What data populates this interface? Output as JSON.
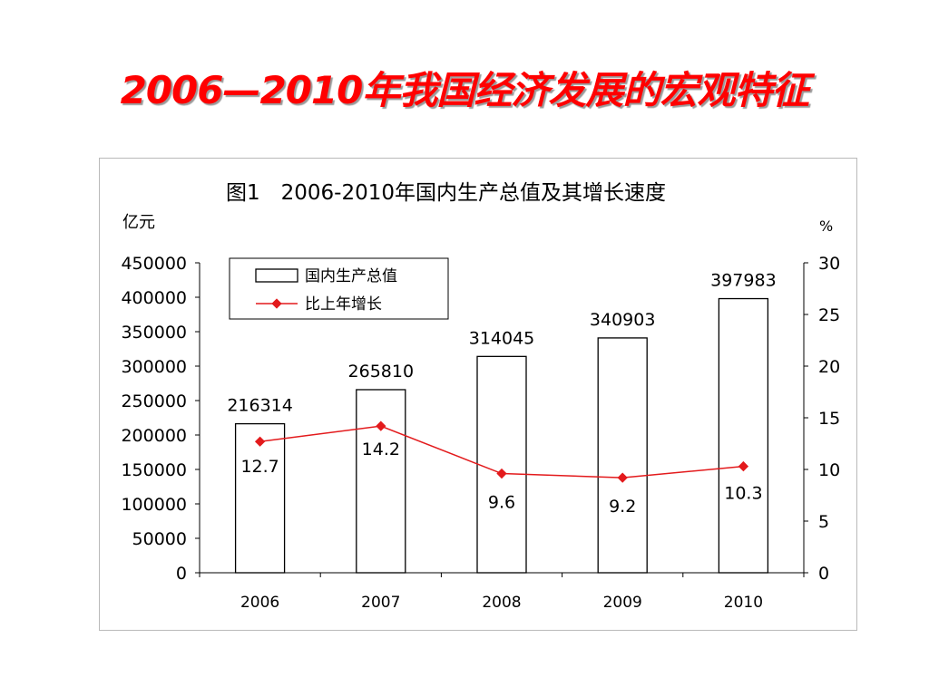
{
  "slide": {
    "title": "2006—2010年我国经济发展的宏观特征"
  },
  "colors": {
    "title": "#ff0000",
    "bar_fill": "#ffffff",
    "bar_stroke": "#000000",
    "line": "#e31a1c"
  },
  "chart_data": {
    "type": "bar",
    "title": "图1　2006-2010年国内生产总值及其增长速度",
    "left_unit": "亿元",
    "right_unit": "%",
    "categories": [
      "2006",
      "2007",
      "2008",
      "2009",
      "2010"
    ],
    "series": [
      {
        "name": "国内生产总值",
        "type": "bar",
        "axis": "left",
        "values": [
          216314,
          265810,
          314045,
          340903,
          397983
        ]
      },
      {
        "name": "比上年增长",
        "type": "line",
        "axis": "right",
        "values": [
          12.7,
          14.2,
          9.6,
          9.2,
          10.3
        ]
      }
    ],
    "y_left": {
      "range": [
        0,
        450000
      ],
      "ticks": [
        "0",
        "50000",
        "100000",
        "150000",
        "200000",
        "250000",
        "300000",
        "350000",
        "400000",
        "450000"
      ]
    },
    "y_right": {
      "range": [
        0,
        30
      ],
      "ticks": [
        "0",
        "5",
        "10",
        "15",
        "20",
        "25",
        "30"
      ]
    },
    "legend_position": "top-left",
    "grid": false
  }
}
